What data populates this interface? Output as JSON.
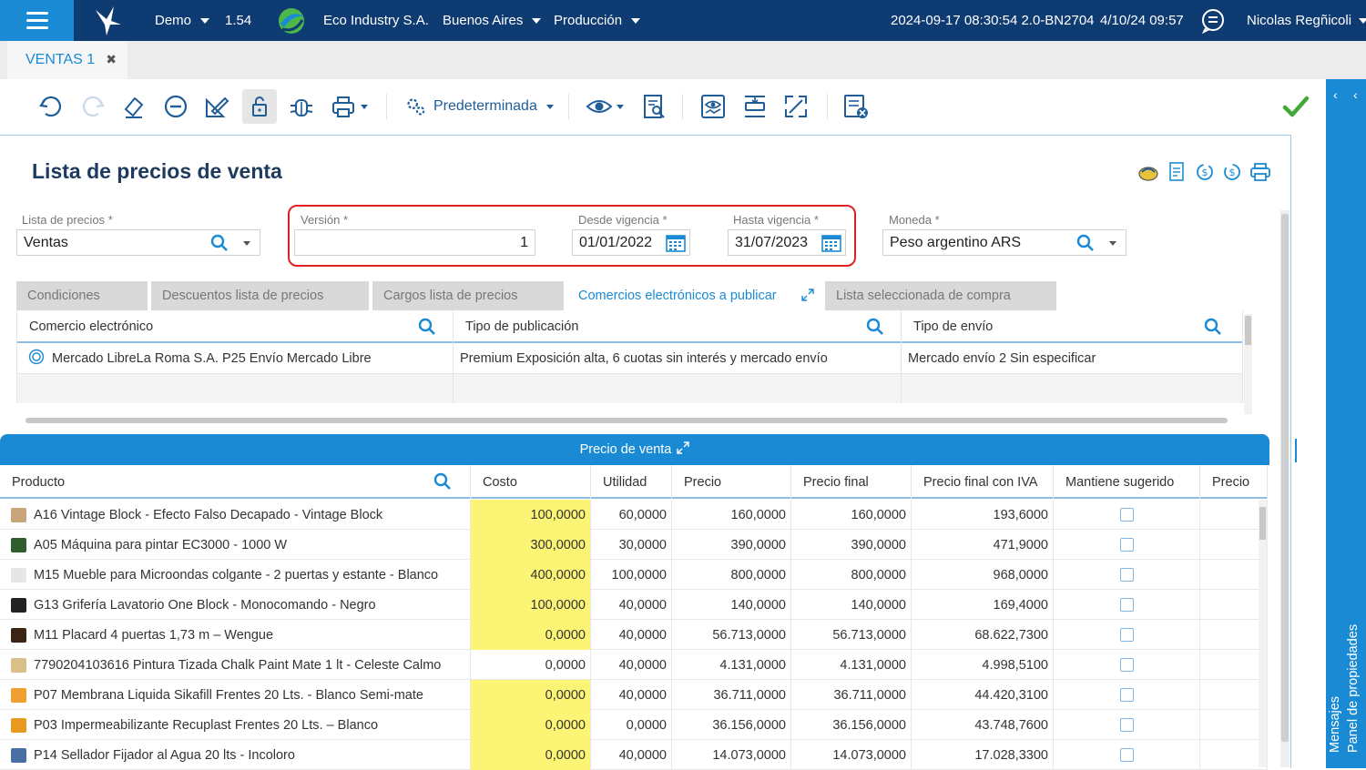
{
  "topbar": {
    "env": "Demo",
    "version": "1.54",
    "company": "Eco Industry S.A.",
    "city": "Buenos Aires",
    "module": "Producción",
    "build": "2024-09-17 08:30:54 2.0-BN2704",
    "datetime": "4/10/24 09:57",
    "user": "Nicolas Regñicoli"
  },
  "tabs": {
    "ventas": "VENTAS 1",
    "close": "✖"
  },
  "toolbar": {
    "layout_label": "Predeterminada"
  },
  "page": {
    "title": "Lista de precios de venta"
  },
  "form": {
    "lista_label": "Lista de precios",
    "lista_value": "Ventas",
    "version_label": "Versión",
    "version_value": "1",
    "desde_label": "Desde vigencia",
    "desde_value": "01/01/2022",
    "hasta_label": "Hasta vigencia",
    "hasta_value": "31/07/2023",
    "moneda_label": "Moneda",
    "moneda_value": "Peso argentino ARS",
    "required": "*"
  },
  "subtabs": [
    "Condiciones",
    "Descuentos lista de precios",
    "Cargos lista de precios",
    "Comercios electrónicos a publicar",
    "Lista seleccionada de compra"
  ],
  "ecom_grid": {
    "headers": [
      "Comercio electrónico",
      "Tipo de publicación",
      "Tipo de envío"
    ],
    "row": [
      "Mercado LibreLa Roma S.A. P25 Envío Mercado Libre",
      "Premium Exposición alta, 6 cuotas sin interés y mercado envío",
      "Mercado envío 2 Sin especificar"
    ]
  },
  "price_panel": {
    "title": "Precio de venta"
  },
  "price_grid": {
    "headers": [
      "Producto",
      "Costo",
      "Utilidad",
      "Precio",
      "Precio final",
      "Precio final con IVA",
      "Mantiene sugerido",
      "Precio"
    ],
    "rows": [
      {
        "producto": "A16 Vintage Block - Efecto Falso Decapado - Vintage Block",
        "costo": "100,0000",
        "utilidad": "60,0000",
        "precio": "160,0000",
        "final": "160,0000",
        "iva": "193,6000",
        "hl": true,
        "thumb": "#c9a57a"
      },
      {
        "producto": "A05 Máquina para pintar EC3000 - 1000 W",
        "costo": "300,0000",
        "utilidad": "30,0000",
        "precio": "390,0000",
        "final": "390,0000",
        "iva": "471,9000",
        "hl": true,
        "thumb": "#2e5e2e"
      },
      {
        "producto": "M15 Mueble para Microondas colgante - 2 puertas y estante - Blanco",
        "costo": "400,0000",
        "utilidad": "100,0000",
        "precio": "800,0000",
        "final": "800,0000",
        "iva": "968,0000",
        "hl": true,
        "thumb": "#e6e6e6"
      },
      {
        "producto": "G13 Grifería Lavatorio One Block - Monocomando - Negro",
        "costo": "100,0000",
        "utilidad": "40,0000",
        "precio": "140,0000",
        "final": "140,0000",
        "iva": "169,4000",
        "hl": true,
        "thumb": "#222222"
      },
      {
        "producto": "M11 Placard 4 puertas 1,73 m – Wengue",
        "costo": "0,0000",
        "utilidad": "40,0000",
        "precio": "56.713,0000",
        "final": "56.713,0000",
        "iva": "68.622,7300",
        "hl": true,
        "thumb": "#3b2414"
      },
      {
        "producto": "7790204103616 Pintura Tizada Chalk Paint Mate 1 lt - Celeste Calmo",
        "costo": "0,0000",
        "utilidad": "40,0000",
        "precio": "4.131,0000",
        "final": "4.131,0000",
        "iva": "4.998,5100",
        "hl": false,
        "thumb": "#d9c08a"
      },
      {
        "producto": "P07 Membrana Liquida Sikafill Frentes 20 Lts. - Blanco Semi-mate",
        "costo": "0,0000",
        "utilidad": "40,0000",
        "precio": "36.711,0000",
        "final": "36.711,0000",
        "iva": "44.420,3100",
        "hl": true,
        "thumb": "#f0a030"
      },
      {
        "producto": "P03 Impermeabilizante Recuplast Frentes 20 Lts. – Blanco",
        "costo": "0,0000",
        "utilidad": "0,0000",
        "precio": "36.156,0000",
        "final": "36.156,0000",
        "iva": "43.748,7600",
        "hl": true,
        "thumb": "#e89a20"
      },
      {
        "producto": "P14 Sellador Fijador al Agua 20 lts - Incoloro",
        "costo": "0,0000",
        "utilidad": "40,0000",
        "precio": "14.073,0000",
        "final": "14.073,0000",
        "iva": "17.028,3300",
        "hl": true,
        "thumb": "#4a6fa5"
      }
    ]
  },
  "rightpanel": {
    "mensajes": "Mensajes",
    "propiedades": "Panel de propiedades"
  },
  "colors": {
    "accent": "#1a8ad4",
    "topbar": "#0f3b73",
    "highlight": "#fbf474",
    "confirm": "#43a83a"
  }
}
